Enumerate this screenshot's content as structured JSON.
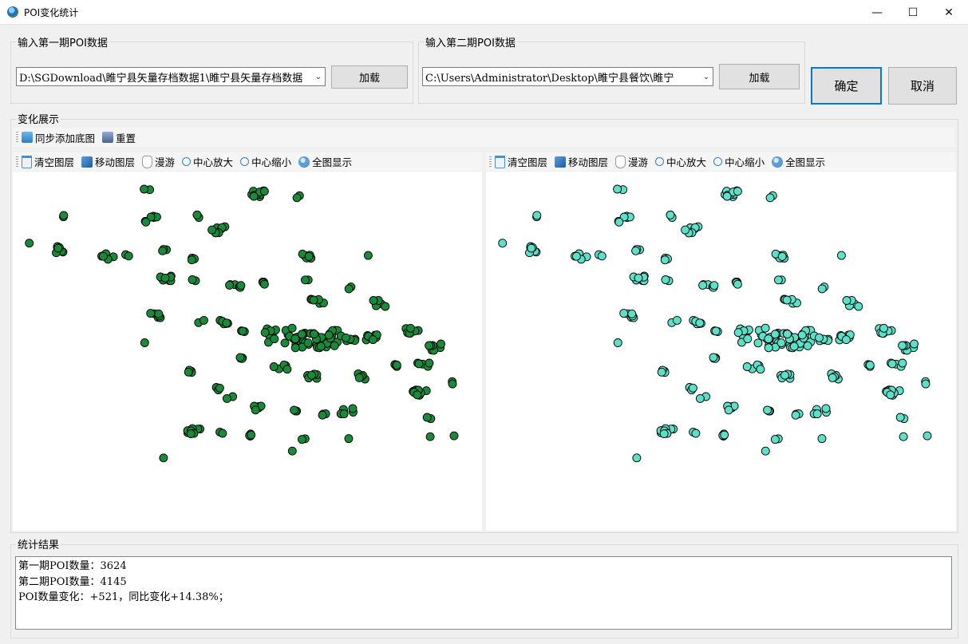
{
  "window": {
    "title": "POI变化统计",
    "minimize": "—",
    "maximize": "☐",
    "close": "✕"
  },
  "period1": {
    "group_label": "输入第一期POI数据",
    "path": "D:\\SGDownload\\睢宁县矢量存档数据1\\睢宁县矢量存档数据",
    "load_label": "加载"
  },
  "period2": {
    "group_label": "输入第二期POI数据",
    "path": "C:\\Users\\Administrator\\Desktop\\睢宁县餐饮\\睢宁",
    "load_label": "加载"
  },
  "actions": {
    "ok_label": "确定",
    "cancel_label": "取消"
  },
  "change": {
    "group_label": "变化展示",
    "top_toolbar": {
      "add_basemap": "同步添加底图",
      "reset": "重置"
    },
    "map_toolbar": {
      "clear": "清空图层",
      "move": "移动图层",
      "pan": "漫游",
      "zoom_in": "中心放大",
      "zoom_out": "中心缩小",
      "full": "全图显示"
    },
    "left_color": "#1a8a3a",
    "right_color": "#5ce0c8"
  },
  "results": {
    "group_label": "统计结果",
    "line1": "第一期POI数量：3624",
    "line2": "第二期POI数量：4145",
    "line3": "POI数量变化：+521，同比变化+14.38%；"
  }
}
